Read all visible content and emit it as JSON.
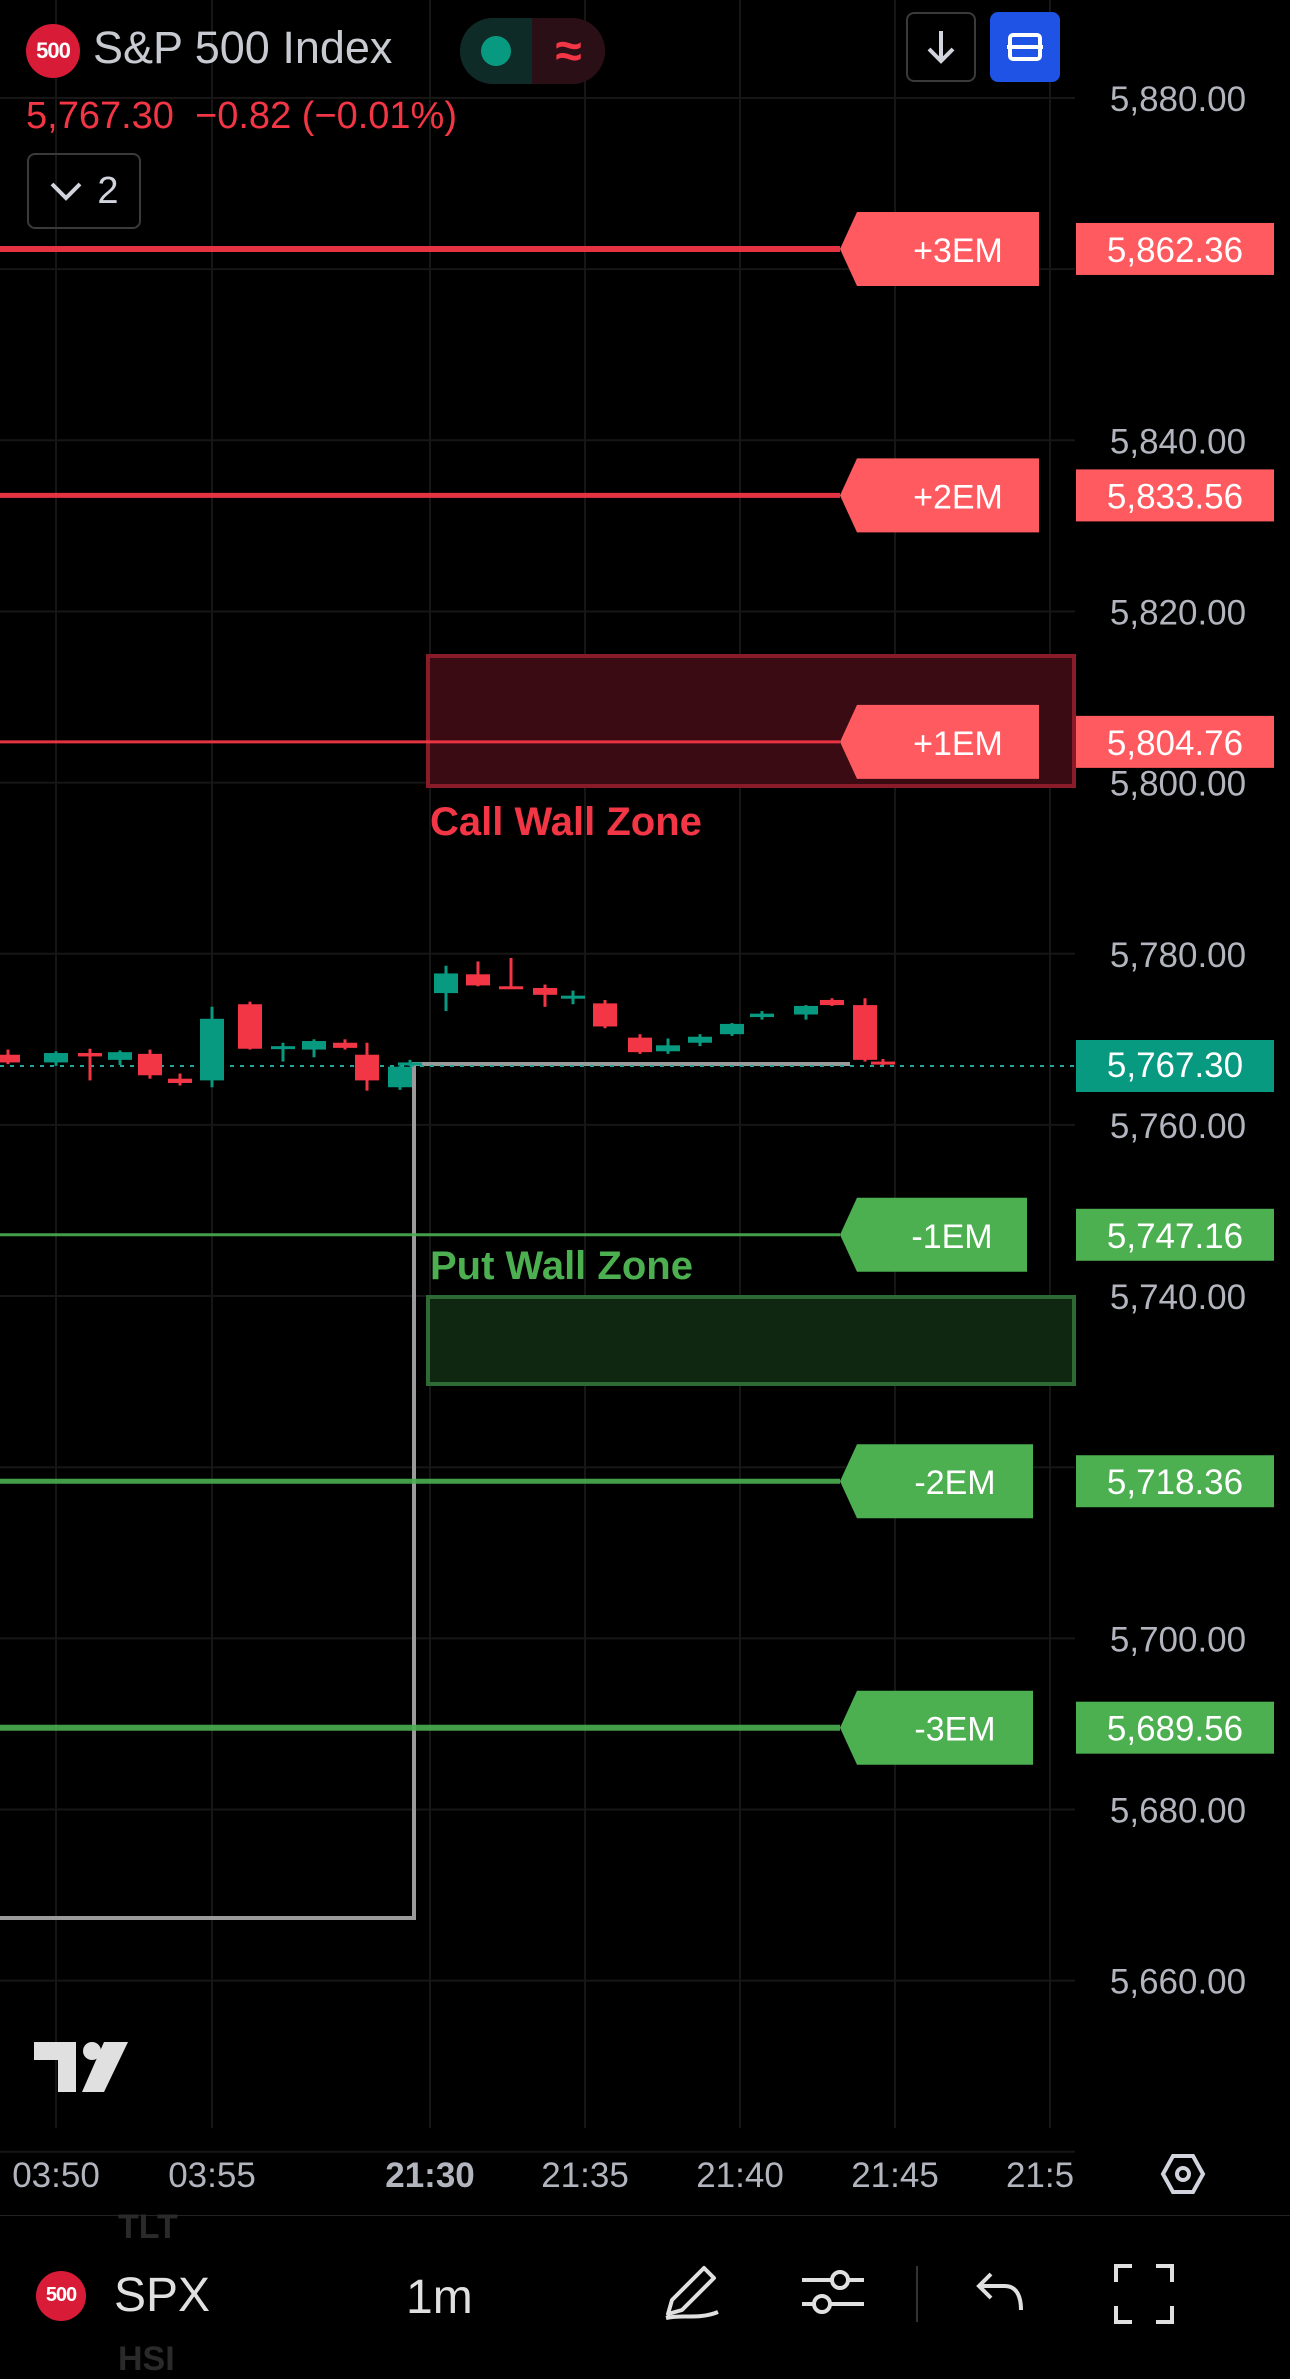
{
  "header": {
    "symbol_badge": "500",
    "title": "S&P 500 Index",
    "last_price": "5,767.30",
    "change": "−0.82 (−0.01%)",
    "indicators_count": "2",
    "toggle_right_glyph": "≈"
  },
  "y_ticks": [
    "5,880.00",
    "5,840.00",
    "5,820.00",
    "5,800.00",
    "5,780.00",
    "5,760.00",
    "5,740.00",
    "5,700.00",
    "5,680.00",
    "5,660.00"
  ],
  "x_ticks": [
    "03:50",
    "03:55",
    "21:30",
    "21:35",
    "21:40",
    "21:45",
    "21:5"
  ],
  "levels": [
    {
      "tag": "+3EM",
      "price": "5,862.36",
      "color": "#f23645"
    },
    {
      "tag": "+2EM",
      "price": "5,833.56",
      "color": "#f23645"
    },
    {
      "tag": "+1EM",
      "price": "5,804.76",
      "color": "#f23645"
    },
    {
      "tag": "-1EM",
      "price": "5,747.16",
      "color": "#4caf50"
    },
    {
      "tag": "-2EM",
      "price": "5,718.36",
      "color": "#4caf50"
    },
    {
      "tag": "-3EM",
      "price": "5,689.56",
      "color": "#4caf50"
    }
  ],
  "current_price_label": "5,767.30",
  "zones": {
    "call_label": "Call Wall Zone",
    "put_label": "Put Wall Zone"
  },
  "colors": {
    "up": "#089981",
    "down": "#f23645",
    "accent_blue": "#1e53e5"
  },
  "toolbar": {
    "symbol_badge": "500",
    "symbol": "SPX",
    "interval": "1m",
    "ghost_top": "TLT",
    "ghost_bottom": "HSI"
  },
  "icons": {
    "download": "arrow-down-icon",
    "fullscreen": "fullscreen-icon",
    "settings": "gear-icon",
    "draw": "pen-icon",
    "indicators": "sliders-icon",
    "undo": "undo-icon",
    "expand": "expand-icon",
    "logo": "tradingview-logo"
  }
}
